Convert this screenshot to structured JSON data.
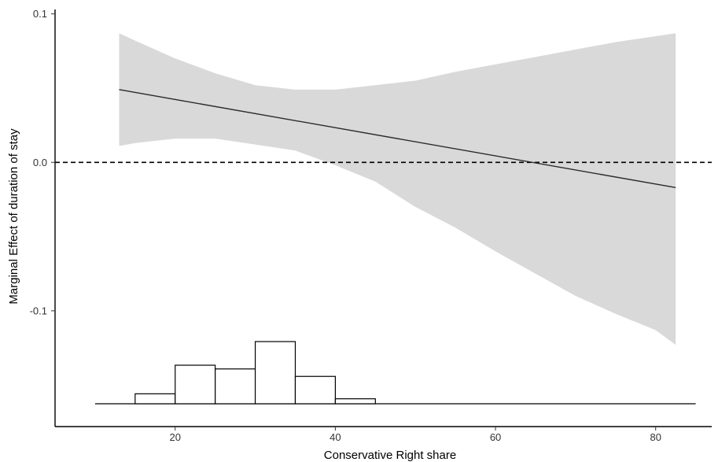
{
  "chart_data": {
    "type": "line",
    "title": "",
    "xlabel": "Conservative Right share",
    "ylabel": "Marginal Effect of duration of stay",
    "xlim": [
      5,
      87
    ],
    "ylim": [
      -0.178,
      0.103
    ],
    "x_ticks": [
      20,
      40,
      60,
      80
    ],
    "x_tick_labels": [
      "20",
      "40",
      "60",
      "80"
    ],
    "y_ticks": [
      -0.1,
      0.0,
      0.1
    ],
    "y_tick_labels": [
      "-0.1",
      "0.0",
      "0.1"
    ],
    "grid": false,
    "legend": "none",
    "reference_line": {
      "y": 0.0,
      "style": "dashed"
    },
    "series": [
      {
        "type": "line",
        "x": [
          13,
          82.5
        ],
        "values": [
          0.049,
          -0.017
        ]
      }
    ],
    "confidence_band": {
      "x": [
        13,
        15,
        20,
        25,
        30,
        35,
        40,
        45,
        50,
        55,
        60,
        65,
        70,
        75,
        80,
        82.5
      ],
      "upper": [
        0.087,
        0.082,
        0.07,
        0.06,
        0.052,
        0.049,
        0.049,
        0.052,
        0.055,
        0.061,
        0.066,
        0.071,
        0.076,
        0.081,
        0.085,
        0.087
      ],
      "lower": [
        0.011,
        0.013,
        0.016,
        0.016,
        0.012,
        0.008,
        -0.002,
        -0.013,
        -0.03,
        -0.044,
        -0.06,
        -0.075,
        -0.09,
        -0.102,
        -0.113,
        -0.123
      ]
    },
    "histogram": {
      "bins": [
        [
          10,
          15
        ],
        [
          15,
          20
        ],
        [
          20,
          25
        ],
        [
          25,
          30
        ],
        [
          30,
          35
        ],
        [
          35,
          40
        ],
        [
          40,
          45
        ],
        [
          45,
          85
        ]
      ],
      "relative_heights": [
        0.0,
        0.16,
        0.62,
        0.56,
        1.0,
        0.44,
        0.08,
        0.0
      ]
    },
    "colors": {
      "band": "#d9d9d9",
      "line": "#2b2b2b",
      "axis": "#000000",
      "histogram_fill": "#ffffff",
      "histogram_stroke": "#000000"
    }
  }
}
